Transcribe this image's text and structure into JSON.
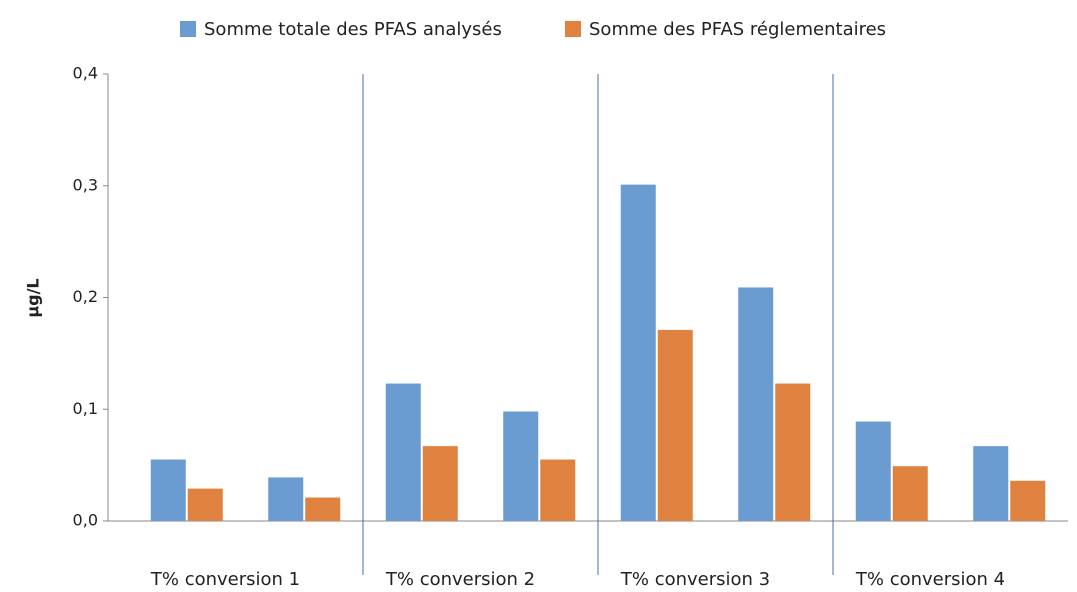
{
  "chart_data": {
    "type": "bar",
    "y_label": "µg/L",
    "categories": [
      null,
      null,
      null,
      null,
      null,
      null,
      null,
      null
    ],
    "groups": [
      "T% conversion 1",
      "T% conversion 2",
      "T% conversion 3",
      "T% conversion 4"
    ],
    "series": [
      {
        "name": "Somme totale des PFAS analysés",
        "color": "#6a9bd1",
        "values": [
          0.055,
          0.039,
          0.123,
          0.098,
          0.301,
          0.209,
          0.089,
          0.067
        ]
      },
      {
        "name": "Somme des PFAS réglementaires",
        "color": "#df8240",
        "values": [
          0.029,
          0.021,
          0.067,
          0.055,
          0.171,
          0.123,
          0.049,
          0.036
        ]
      }
    ],
    "ylim": [
      0,
      0.4
    ],
    "yticks": [
      {
        "value": 0,
        "label": "0,0"
      },
      {
        "value": 0.1,
        "label": "0,1"
      },
      {
        "value": 0.2,
        "label": "0,2"
      },
      {
        "value": 0.3,
        "label": "0,3"
      },
      {
        "value": 0.4,
        "label": "0,4"
      }
    ],
    "grid": false,
    "legend": "top"
  }
}
